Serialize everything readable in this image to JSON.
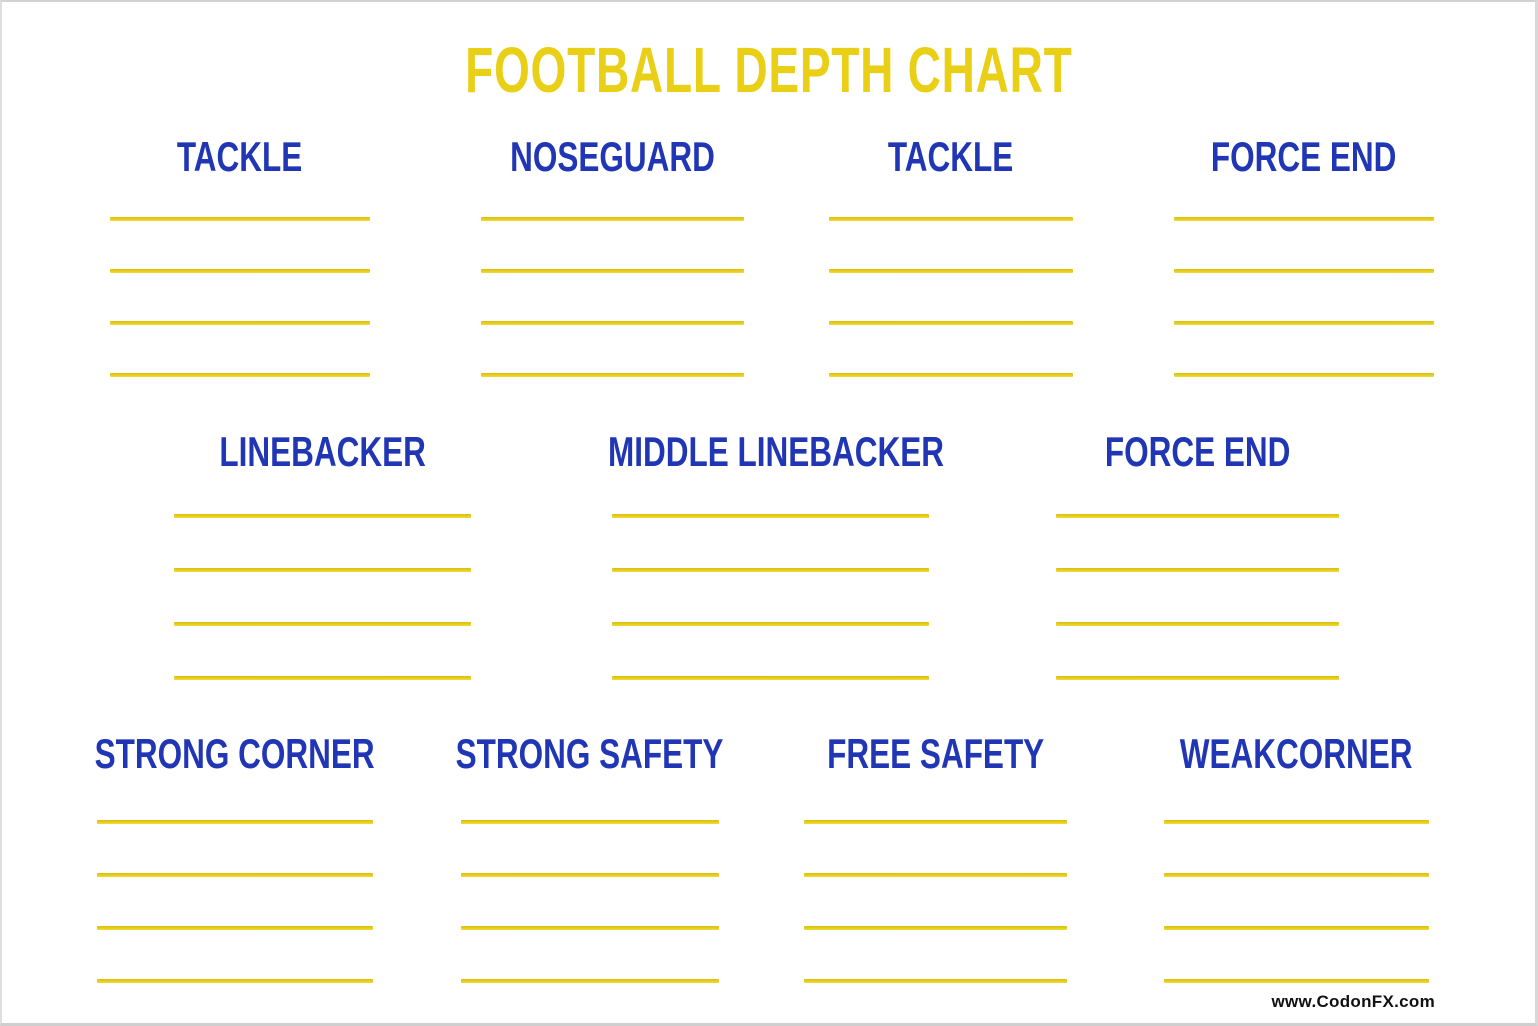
{
  "title": "FOOTBALL DEPTH CHART",
  "watermark": "www.CodonFX.com",
  "colors": {
    "title_yellow": "#e9cf15",
    "line_yellow": "#e7cf1a",
    "header_blue": "#2036b4",
    "watermark_black": "#111111",
    "background": "#ffffff",
    "border_gray": "#d6d6d6"
  },
  "rows": [
    {
      "positions": [
        {
          "label": "TACKLE",
          "slots": 4
        },
        {
          "label": "NOSEGUARD",
          "slots": 4
        },
        {
          "label": "TACKLE",
          "slots": 4
        },
        {
          "label": "FORCE END",
          "slots": 4
        }
      ]
    },
    {
      "positions": [
        {
          "label": "LINEBACKER",
          "slots": 4
        },
        {
          "label": "MIDDLE LINEBACKER",
          "slots": 4
        },
        {
          "label": "FORCE END",
          "slots": 4
        }
      ]
    },
    {
      "positions": [
        {
          "label": "STRONG CORNER",
          "slots": 4
        },
        {
          "label": "STRONG SAFETY",
          "slots": 4
        },
        {
          "label": "FREE SAFETY",
          "slots": 4
        },
        {
          "label": "WEAKCORNER",
          "slots": 4
        }
      ]
    }
  ]
}
